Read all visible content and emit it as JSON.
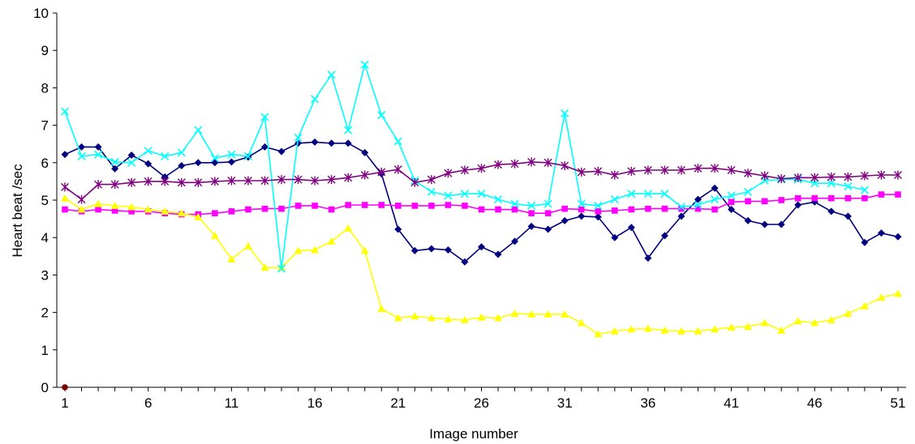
{
  "chart_data": {
    "type": "line",
    "title": "",
    "xlabel": "Image number",
    "ylabel": "Heart beat /sec",
    "xlim": [
      1,
      51
    ],
    "ylim": [
      0,
      10
    ],
    "yticks": [
      0,
      1,
      2,
      3,
      4,
      5,
      6,
      7,
      8,
      9,
      10
    ],
    "xticks": [
      1,
      6,
      11,
      16,
      21,
      26,
      31,
      36,
      41,
      46,
      51
    ],
    "grid": false,
    "legend": "none",
    "series": [
      {
        "color": "#000080",
        "marker": "diamond",
        "x": [
          1,
          2,
          3,
          4,
          5,
          6,
          7,
          8,
          9,
          10,
          11,
          12,
          13,
          14,
          15,
          16,
          17,
          18,
          19,
          20,
          21,
          22,
          23,
          24,
          25,
          26,
          27,
          28,
          29,
          30,
          31,
          32,
          33,
          34,
          35,
          36,
          37,
          38,
          39,
          40,
          41,
          42,
          43,
          44,
          45,
          46,
          47,
          48,
          49,
          50,
          51
        ],
        "y": [
          6.22,
          6.42,
          6.42,
          5.84,
          6.2,
          5.97,
          5.62,
          5.92,
          6.0,
          6.0,
          6.02,
          6.15,
          6.42,
          6.3,
          6.52,
          6.55,
          6.52,
          6.52,
          6.27,
          5.7,
          4.22,
          3.65,
          3.7,
          3.67,
          3.35,
          3.75,
          3.55,
          3.9,
          4.3,
          4.22,
          4.45,
          4.57,
          4.55,
          4.0,
          4.27,
          3.45,
          4.05,
          4.57,
          5.02,
          5.32,
          4.75,
          4.45,
          4.35,
          4.35,
          4.87,
          4.95,
          4.7,
          4.57,
          3.87,
          4.12,
          4.02
        ]
      },
      {
        "color": "#ff00ff",
        "marker": "square",
        "x": [
          1,
          2,
          3,
          4,
          5,
          6,
          7,
          8,
          9,
          10,
          11,
          12,
          13,
          14,
          15,
          16,
          17,
          18,
          19,
          20,
          21,
          22,
          23,
          24,
          25,
          26,
          27,
          28,
          29,
          30,
          31,
          32,
          33,
          34,
          35,
          36,
          37,
          38,
          39,
          40,
          41,
          42,
          43,
          44,
          45,
          46,
          47,
          48,
          49,
          50,
          51
        ],
        "y": [
          4.75,
          4.7,
          4.75,
          4.72,
          4.7,
          4.7,
          4.65,
          4.62,
          4.62,
          4.65,
          4.7,
          4.75,
          4.77,
          4.77,
          4.85,
          4.85,
          4.75,
          4.87,
          4.87,
          4.87,
          4.85,
          4.85,
          4.85,
          4.87,
          4.85,
          4.75,
          4.75,
          4.75,
          4.65,
          4.65,
          4.77,
          4.75,
          4.7,
          4.72,
          4.75,
          4.77,
          4.77,
          4.77,
          4.77,
          4.75,
          4.95,
          4.97,
          4.97,
          5.0,
          5.05,
          5.05,
          5.05,
          5.05,
          5.05,
          5.15,
          5.15
        ]
      },
      {
        "color": "#ffff00",
        "marker": "triangle",
        "x": [
          1,
          2,
          3,
          4,
          5,
          6,
          7,
          8,
          9,
          10,
          11,
          12,
          13,
          14,
          15,
          16,
          17,
          18,
          19,
          20,
          21,
          22,
          23,
          24,
          25,
          26,
          27,
          28,
          29,
          30,
          31,
          32,
          33,
          34,
          35,
          36,
          37,
          38,
          39,
          40,
          41,
          42,
          43,
          44,
          45,
          46,
          47,
          48,
          49,
          50,
          51
        ],
        "y": [
          5.05,
          4.75,
          4.9,
          4.85,
          4.82,
          4.75,
          4.7,
          4.65,
          4.55,
          4.05,
          3.42,
          3.77,
          3.2,
          3.2,
          3.65,
          3.67,
          3.9,
          4.25,
          3.65,
          2.1,
          1.85,
          1.9,
          1.85,
          1.82,
          1.8,
          1.87,
          1.85,
          1.97,
          1.95,
          1.95,
          1.95,
          1.72,
          1.42,
          1.5,
          1.55,
          1.57,
          1.52,
          1.5,
          1.5,
          1.55,
          1.6,
          1.62,
          1.72,
          1.52,
          1.77,
          1.72,
          1.8,
          1.97,
          2.17,
          2.4,
          2.5
        ]
      },
      {
        "color": "#00ffff",
        "marker": "x",
        "x": [
          1,
          2,
          3,
          4,
          5,
          6,
          7,
          8,
          9,
          10,
          11,
          12,
          13,
          14,
          15,
          16,
          17,
          18,
          19,
          20,
          21,
          22,
          23,
          24,
          25,
          26,
          27,
          28,
          29,
          30,
          31,
          32,
          33,
          34,
          35,
          36,
          37,
          38,
          39,
          40,
          41,
          42,
          43,
          44,
          45,
          46,
          47,
          48,
          49
        ],
        "y": [
          7.37,
          6.17,
          6.22,
          6.02,
          6.0,
          6.32,
          6.17,
          6.27,
          6.87,
          6.12,
          6.22,
          6.17,
          7.22,
          3.17,
          6.67,
          7.7,
          8.35,
          6.87,
          8.62,
          7.27,
          6.57,
          5.52,
          5.22,
          5.12,
          5.17,
          5.17,
          5.02,
          4.9,
          4.85,
          4.9,
          7.32,
          4.9,
          4.85,
          5.02,
          5.17,
          5.17,
          5.17,
          4.82,
          4.87,
          5.02,
          5.12,
          5.22,
          5.52,
          5.55,
          5.55,
          5.45,
          5.45,
          5.37,
          5.27
        ]
      },
      {
        "color": "#800080",
        "marker": "star",
        "x": [
          1,
          2,
          3,
          4,
          5,
          6,
          7,
          8,
          9,
          10,
          11,
          12,
          13,
          14,
          15,
          16,
          17,
          18,
          19,
          20,
          21,
          22,
          23,
          24,
          25,
          26,
          27,
          28,
          29,
          30,
          31,
          32,
          33,
          34,
          35,
          36,
          37,
          38,
          39,
          40,
          41,
          42,
          43,
          44,
          45,
          46,
          47,
          48,
          49,
          50,
          51
        ],
        "y": [
          5.35,
          5.02,
          5.42,
          5.42,
          5.47,
          5.5,
          5.5,
          5.47,
          5.47,
          5.5,
          5.52,
          5.52,
          5.52,
          5.55,
          5.55,
          5.52,
          5.55,
          5.6,
          5.67,
          5.75,
          5.82,
          5.47,
          5.55,
          5.72,
          5.8,
          5.85,
          5.95,
          5.97,
          6.02,
          6.0,
          5.92,
          5.75,
          5.77,
          5.67,
          5.77,
          5.8,
          5.8,
          5.8,
          5.85,
          5.85,
          5.8,
          5.72,
          5.65,
          5.57,
          5.6,
          5.6,
          5.62,
          5.62,
          5.65,
          5.67,
          5.67
        ]
      },
      {
        "color": "#800000",
        "marker": "circle",
        "x": [
          1
        ],
        "y": [
          0
        ]
      }
    ]
  }
}
